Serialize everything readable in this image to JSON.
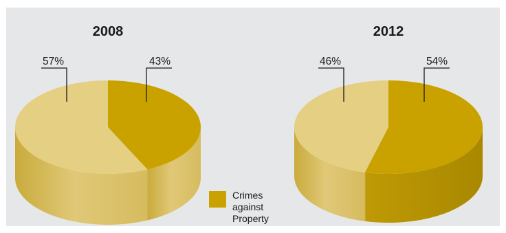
{
  "chart_data": [
    {
      "type": "pie",
      "title": "2008",
      "slices": [
        {
          "label": "Crimes against Property",
          "value": 43,
          "display": "43%",
          "highlighted": true
        },
        {
          "label": "",
          "value": 57,
          "display": "57%",
          "highlighted": false
        }
      ]
    },
    {
      "type": "pie",
      "title": "2012",
      "slices": [
        {
          "label": "Crimes against Property",
          "value": 54,
          "display": "54%",
          "highlighted": true
        },
        {
          "label": "",
          "value": 46,
          "display": "46%",
          "highlighted": false
        }
      ]
    }
  ],
  "legend": {
    "label": "Crimes against Property",
    "color": "#c9a200"
  },
  "colors": {
    "panel_background": "#e6e7e8",
    "highlight": "#c9a200",
    "highlight_side": "#b89500",
    "other": "#e4cf82",
    "other_side_light": "#ddc46a",
    "other_side_dark": "#c9ab3c",
    "text": "#1a1a1a"
  }
}
